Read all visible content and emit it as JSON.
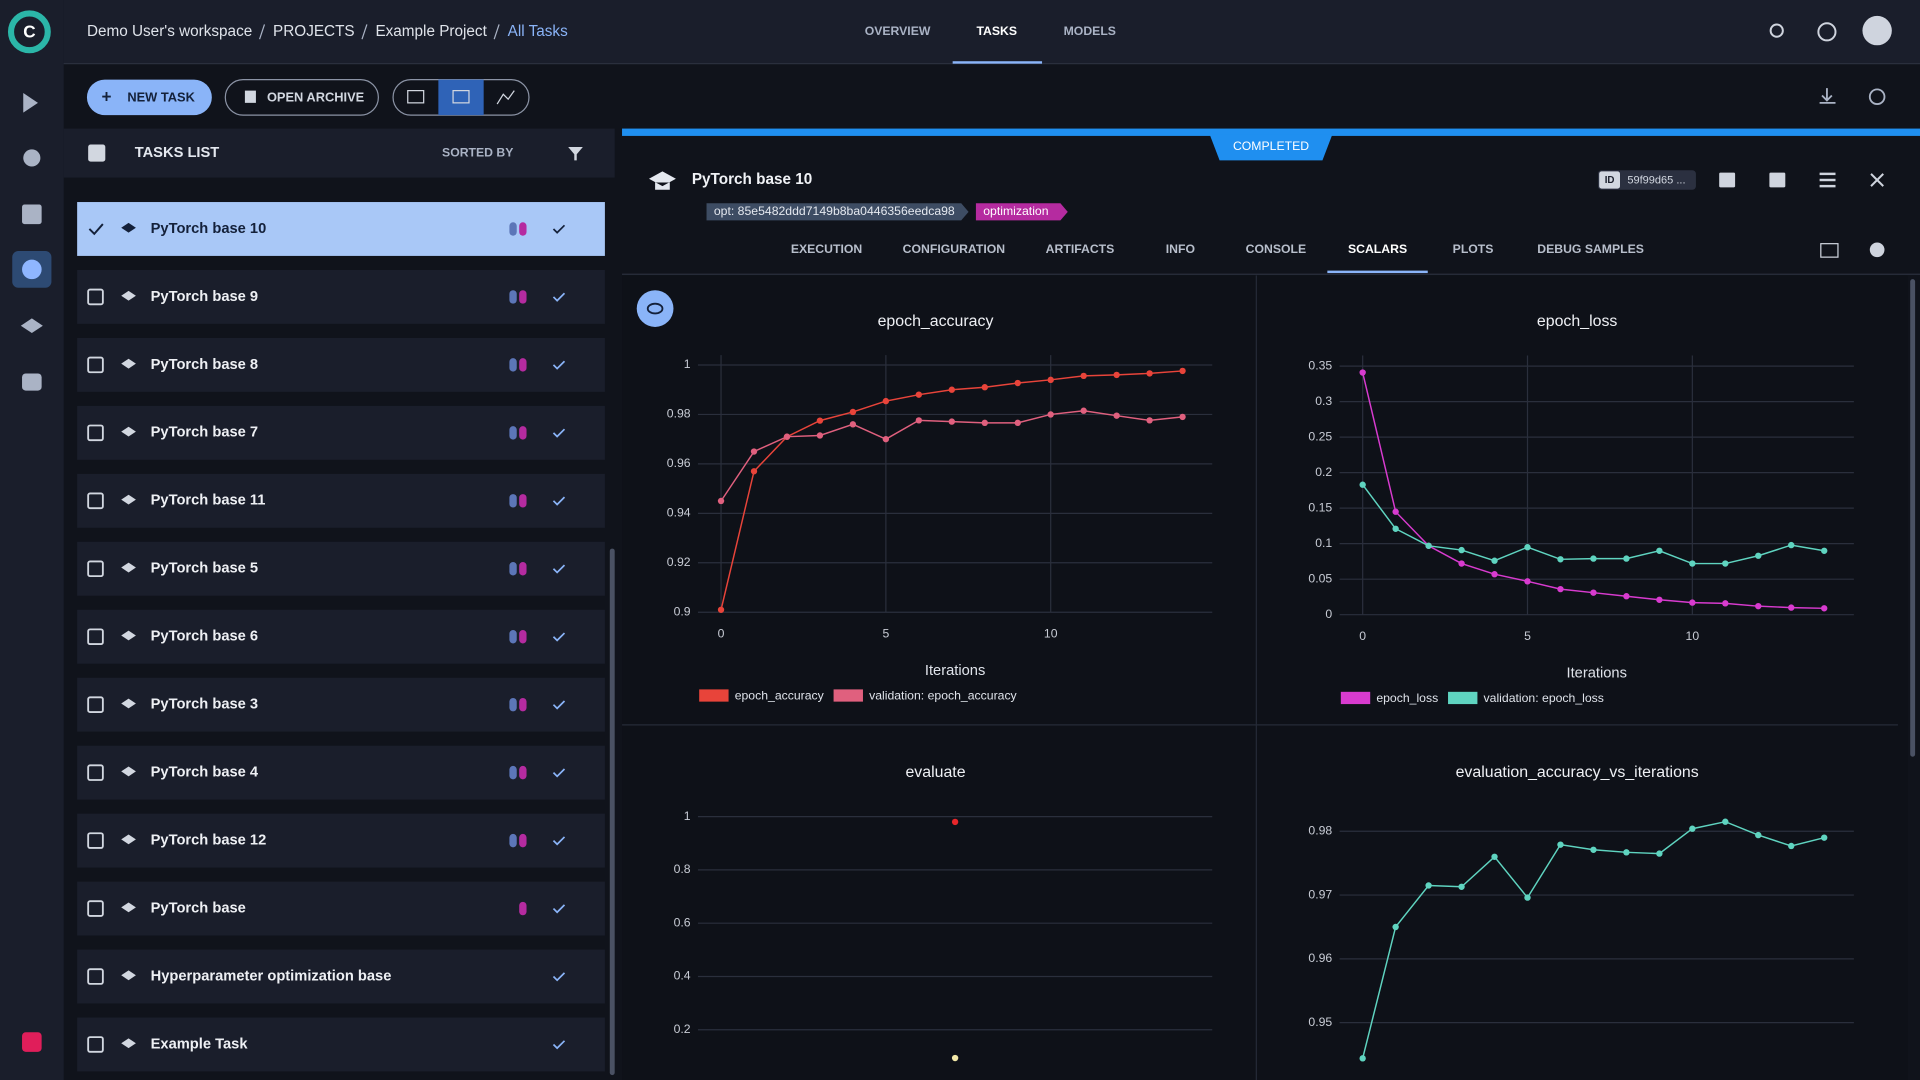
{
  "breadcrumb": [
    "Demo User's workspace",
    "PROJECTS",
    "Example Project",
    "All Tasks"
  ],
  "nav_tabs": [
    "OVERVIEW",
    "TASKS",
    "MODELS"
  ],
  "toolbar": {
    "new_task": "NEW TASK",
    "open_archive": "OPEN ARCHIVE"
  },
  "tasks_list": {
    "title": "TASKS LIST",
    "sort": "SORTED BY",
    "tasks": [
      "PyTorch base 10",
      "PyTorch base 9",
      "PyTorch base 8",
      "PyTorch base 7",
      "PyTorch base 11",
      "PyTorch base 5",
      "PyTorch base 6",
      "PyTorch base 3",
      "PyTorch base 4",
      "PyTorch base 12",
      "PyTorch base",
      "Hyperparameter optimization base",
      "Example Task"
    ]
  },
  "task": {
    "status": "COMPLETED",
    "name": "PyTorch base 10",
    "tags": [
      "opt: 85e5482ddd7149b8ba0446356eedca98",
      "optimization"
    ],
    "id_label": "ID",
    "id": "59f99d65 ...",
    "tabs": [
      "EXECUTION",
      "CONFIGURATION",
      "ARTIFACTS",
      "INFO",
      "CONSOLE",
      "SCALARS",
      "PLOTS",
      "DEBUG SAMPLES"
    ],
    "active_tab": 5
  },
  "charts": [
    {
      "type": "line",
      "title": "epoch_accuracy",
      "x_label": "Iterations",
      "x": [
        0,
        1,
        2,
        3,
        4,
        5,
        6,
        7,
        8,
        9,
        10,
        11,
        12,
        13,
        14
      ],
      "series": [
        {
          "name": "epoch_accuracy",
          "color": "#e8443a",
          "values": [
            0.901,
            0.957,
            0.971,
            0.9775,
            0.981,
            0.9854,
            0.988,
            0.99,
            0.991,
            0.9927,
            0.994,
            0.9956,
            0.996,
            0.9966,
            0.9976
          ]
        },
        {
          "name": "validation: epoch_accuracy",
          "color": "#e0607e",
          "values": [
            0.945,
            0.965,
            0.971,
            0.9715,
            0.976,
            0.97,
            0.9776,
            0.9771,
            0.9766,
            0.9766,
            0.98,
            0.9815,
            0.9795,
            0.9776,
            0.979
          ]
        }
      ],
      "xlim": [
        -0.7,
        14.9
      ],
      "ylim": [
        0.9,
        1.004
      ],
      "xticks": [
        0,
        5,
        10
      ],
      "yticks": [
        0.9,
        0.92,
        0.94,
        0.96,
        0.98,
        1
      ],
      "grid": true
    },
    {
      "type": "line",
      "title": "epoch_loss",
      "x_label": "Iterations",
      "x": [
        0,
        1,
        2,
        3,
        4,
        5,
        6,
        7,
        8,
        9,
        10,
        11,
        12,
        13,
        14
      ],
      "series": [
        {
          "name": "epoch_loss",
          "color": "#d83bcf",
          "values": [
            0.341,
            0.145,
            0.097,
            0.072,
            0.057,
            0.047,
            0.036,
            0.031,
            0.026,
            0.021,
            0.017,
            0.016,
            0.012,
            0.01,
            0.009
          ]
        },
        {
          "name": "validation: epoch_loss",
          "color": "#5fd4c0",
          "values": [
            0.183,
            0.121,
            0.097,
            0.091,
            0.076,
            0.095,
            0.078,
            0.079,
            0.079,
            0.09,
            0.072,
            0.072,
            0.083,
            0.098,
            0.09
          ]
        }
      ],
      "xlim": [
        -0.7,
        14.9
      ],
      "ylim": [
        0,
        0.365
      ],
      "xticks": [
        0,
        5,
        10
      ],
      "yticks": [
        0,
        0.05,
        0.1,
        0.15,
        0.2,
        0.25,
        0.3,
        0.35
      ],
      "grid": true
    },
    {
      "type": "scatter",
      "title": "evaluate",
      "series": [
        {
          "color": "#e8262a",
          "x": [
            0
          ],
          "values": [
            0.98
          ]
        },
        {
          "color": "#f3e9a8",
          "x": [
            0
          ],
          "values": [
            0.094
          ]
        }
      ],
      "xlim": [
        -2,
        2
      ],
      "ylim": [
        0,
        1.05
      ],
      "yticks": [
        0.2,
        0.4,
        0.6,
        0.8,
        1
      ],
      "grid": true
    },
    {
      "type": "line",
      "title": "evaluation_accuracy_vs_iterations",
      "x": [
        0,
        1,
        2,
        3,
        4,
        5,
        6,
        7,
        8,
        9,
        10,
        11,
        12,
        13,
        14
      ],
      "series": [
        {
          "color": "#5fd4c0",
          "values": [
            0.9444,
            0.965,
            0.9715,
            0.9713,
            0.976,
            0.9696,
            0.9779,
            0.9771,
            0.9767,
            0.9765,
            0.9804,
            0.9815,
            0.9794,
            0.9777,
            0.979
          ]
        }
      ],
      "xlim": [
        -0.7,
        14.9
      ],
      "ylim": [
        0.941,
        0.9842
      ],
      "yticks": [
        0.95,
        0.96,
        0.97,
        0.98
      ],
      "grid": true
    }
  ]
}
